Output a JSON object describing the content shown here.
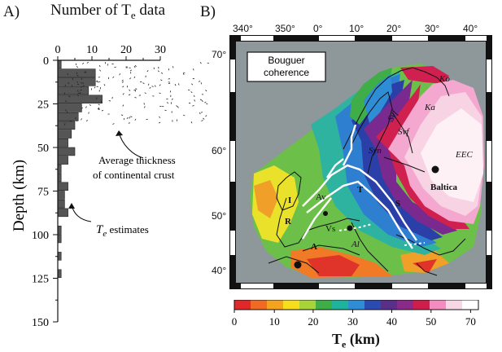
{
  "panel_a": {
    "label": "A)",
    "top_axis_title_prefix": "Number of T",
    "top_axis_title_sub": "e",
    "top_axis_title_suffix": " data",
    "top_ticks": [
      "0",
      "10",
      "20",
      "30"
    ],
    "depth_title": "Depth (km)",
    "depth_ticks": [
      "0",
      "25",
      "50",
      "75",
      "100",
      "125",
      "150"
    ],
    "annotation_crust_line1": "Average thickness",
    "annotation_crust_line2": "of continental crust",
    "annotation_te_symbol": "T",
    "annotation_te_sub": "e",
    "annotation_te_text": " estimates"
  },
  "panel_b": {
    "label": "B)",
    "top_lon_ticks": [
      "340°",
      "350°",
      "0°",
      "10°",
      "20°",
      "30°",
      "40°"
    ],
    "lat_ticks": [
      "70°",
      "60°",
      "50°",
      "40°"
    ],
    "inset_line1": "Bouguer",
    "inset_line2": "coherence",
    "map_labels": {
      "ko": "Ko",
      "ka": "Ka",
      "svf1": "Svf",
      "svf2": "Svf",
      "eec": "EEC",
      "syn": "Syn",
      "baltica": "Baltica",
      "t": "T",
      "s": "S",
      "av": "Av",
      "i": "I",
      "r": "R",
      "vs": "Vs",
      "a": "A",
      "al": "Al"
    },
    "colorbar_ticks": [
      "0",
      "10",
      "20",
      "30",
      "40",
      "50",
      "70"
    ],
    "colorbar_title_main": "T",
    "colorbar_title_sub": "e",
    "colorbar_title_unit": " (km)"
  },
  "chart_data": {
    "type": "bar",
    "orientation": "horizontal",
    "categories": [
      2.5,
      7.5,
      12.5,
      17.5,
      22.5,
      27.5,
      32.5,
      37.5,
      42.5,
      47.5,
      52.5,
      57.5,
      62.5,
      67.5,
      72.5,
      77.5,
      82.5,
      87.5,
      92.5,
      97.5,
      102.5,
      107.5,
      112.5,
      117.5,
      122.5,
      127.5
    ],
    "values": [
      1,
      11,
      11,
      9,
      13,
      7,
      6,
      5,
      4,
      3,
      5,
      3,
      1,
      1,
      3,
      2,
      2,
      3,
      0,
      1,
      1,
      0,
      1,
      0,
      1,
      0
    ],
    "xlabel": "Number of Te data",
    "ylabel": "Depth (km)",
    "xlim": [
      0,
      30
    ],
    "ylim": [
      0,
      150
    ],
    "crust_thickness_km": 37,
    "colors": {
      "bar": "#555555"
    }
  },
  "colors": {
    "colorbar": [
      "#e0282a",
      "#f06a24",
      "#f5a31f",
      "#f6dd1e",
      "#a8d43a",
      "#3fae49",
      "#1fb39b",
      "#2f8dd6",
      "#2b4bb0",
      "#5a2f8a",
      "#8a2a8a",
      "#d01e4c",
      "#f58cbf",
      "#f7d6e6",
      "#ffffff"
    ]
  }
}
